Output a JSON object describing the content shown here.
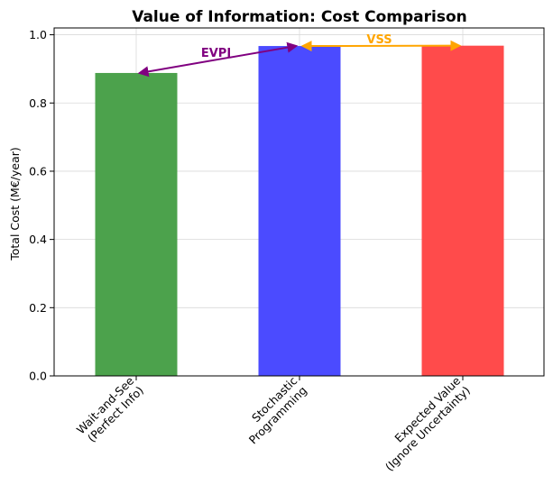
{
  "chart_data": {
    "type": "bar",
    "title": "Value of Information: Cost Comparison",
    "xlabel": "",
    "ylabel": "Total Cost (M€/year)",
    "ylim": [
      0,
      1.02
    ],
    "yticks": [
      "0.0",
      "0.2",
      "0.4",
      "0.6",
      "0.8",
      "1.0"
    ],
    "grid": true,
    "categories": [
      [
        "Wait-and-See",
        "(Perfect Info)"
      ],
      [
        "Stochastic",
        "Programming"
      ],
      [
        "Expected Value",
        "(Ignore Uncertainty)"
      ]
    ],
    "values": [
      0.888,
      0.967,
      0.968
    ],
    "bar_colors": [
      "#4ca24c",
      "#4b4bff",
      "#ff4b4b"
    ],
    "annotations": [
      {
        "label": "EVPI",
        "from_bar": 0,
        "to_bar": 1,
        "color": "#800080"
      },
      {
        "label": "VSS",
        "from_bar": 1,
        "to_bar": 2,
        "color": "#ffa500"
      }
    ]
  }
}
